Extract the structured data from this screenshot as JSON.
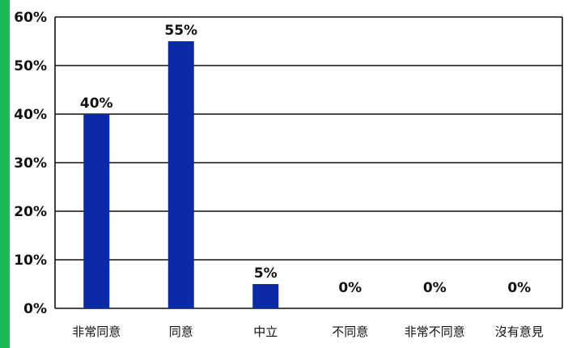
{
  "colors": {
    "accent": "#1db954",
    "bar": "#0a2aa6",
    "grid": "#111111"
  },
  "chart_data": {
    "type": "bar",
    "categories": [
      "非常同意",
      "同意",
      "中立",
      "不同意",
      "非常不同意",
      "沒有意見"
    ],
    "values": [
      40,
      55,
      5,
      0,
      0,
      0
    ],
    "data_labels": [
      "40%",
      "55%",
      "5%",
      "0%",
      "0%",
      "0%"
    ],
    "ylim": [
      0,
      60
    ],
    "yticks": [
      0,
      10,
      20,
      30,
      40,
      50,
      60
    ],
    "ytick_labels": [
      "0%",
      "10%",
      "20%",
      "30%",
      "40%",
      "50%",
      "60%"
    ],
    "grid": true,
    "legend": "none"
  }
}
